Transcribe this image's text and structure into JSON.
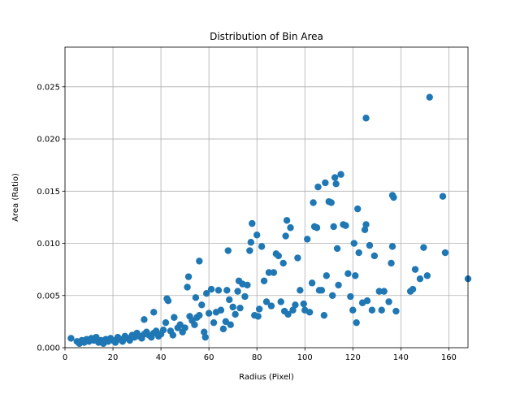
{
  "chart_data": {
    "type": "scatter",
    "title": "Distribution of Bin Area",
    "xlabel": "Radius (Pixel)",
    "ylabel": "Area (Ratio)",
    "xlim": [
      0,
      168
    ],
    "ylim": [
      0,
      0.0288
    ],
    "grid": true,
    "color": "#1f77b4",
    "x_ticks": [
      0,
      20,
      40,
      60,
      80,
      100,
      120,
      140,
      160
    ],
    "x_tick_labels": [
      "0",
      "20",
      "40",
      "60",
      "80",
      "100",
      "120",
      "140",
      "160"
    ],
    "y_ticks": [
      0,
      0.005,
      0.01,
      0.015,
      0.02,
      0.025
    ],
    "y_tick_labels": [
      "0.000",
      "0.005",
      "0.010",
      "0.015",
      "0.020",
      "0.025"
    ],
    "points": [
      [
        2.5,
        0.0009
      ],
      [
        5,
        0.0006
      ],
      [
        6,
        0.0004
      ],
      [
        7,
        0.0007
      ],
      [
        8,
        0.0005
      ],
      [
        9,
        0.0008
      ],
      [
        10,
        0.0006
      ],
      [
        11,
        0.0009
      ],
      [
        12,
        0.0007
      ],
      [
        13,
        0.001
      ],
      [
        14,
        0.0005
      ],
      [
        15,
        0.0007
      ],
      [
        16,
        0.0004
      ],
      [
        17,
        0.0008
      ],
      [
        18,
        0.0006
      ],
      [
        19,
        0.0009
      ],
      [
        20,
        0.0007
      ],
      [
        21,
        0.0005
      ],
      [
        22,
        0.001
      ],
      [
        23,
        0.0008
      ],
      [
        24,
        0.0006
      ],
      [
        25,
        0.0011
      ],
      [
        26,
        0.0009
      ],
      [
        27,
        0.0007
      ],
      [
        28,
        0.0012
      ],
      [
        29,
        0.001
      ],
      [
        30,
        0.0014
      ],
      [
        31,
        0.0011
      ],
      [
        32,
        0.0009
      ],
      [
        33,
        0.0013
      ],
      [
        34,
        0.0015
      ],
      [
        35,
        0.0012
      ],
      [
        36,
        0.001
      ],
      [
        37,
        0.0014
      ],
      [
        38,
        0.0016
      ],
      [
        39,
        0.0011
      ],
      [
        33,
        0.0027
      ],
      [
        37,
        0.0034
      ],
      [
        40,
        0.0013
      ],
      [
        41,
        0.0017
      ],
      [
        42,
        0.0024
      ],
      [
        43,
        0.0045
      ],
      [
        42.5,
        0.0047
      ],
      [
        44,
        0.0016
      ],
      [
        45,
        0.0012
      ],
      [
        45.5,
        0.0029
      ],
      [
        47,
        0.0019
      ],
      [
        48,
        0.0022
      ],
      [
        49,
        0.0015
      ],
      [
        50,
        0.0019
      ],
      [
        51,
        0.0058
      ],
      [
        51.5,
        0.0068
      ],
      [
        52,
        0.003
      ],
      [
        53,
        0.0026
      ],
      [
        54,
        0.0022
      ],
      [
        54.5,
        0.0048
      ],
      [
        55,
        0.0029
      ],
      [
        56,
        0.0031
      ],
      [
        56,
        0.0083
      ],
      [
        57,
        0.0041
      ],
      [
        58,
        0.0015
      ],
      [
        58.5,
        0.001
      ],
      [
        59,
        0.0052
      ],
      [
        60,
        0.0033
      ],
      [
        61,
        0.0056
      ],
      [
        62,
        0.0024
      ],
      [
        63,
        0.0034
      ],
      [
        64,
        0.0055
      ],
      [
        65,
        0.0036
      ],
      [
        66,
        0.0018
      ],
      [
        67,
        0.0025
      ],
      [
        67.5,
        0.0055
      ],
      [
        68,
        0.0093
      ],
      [
        68.5,
        0.0046
      ],
      [
        69,
        0.0022
      ],
      [
        70,
        0.0039
      ],
      [
        71,
        0.0032
      ],
      [
        72,
        0.0054
      ],
      [
        72.5,
        0.0064
      ],
      [
        73,
        0.0038
      ],
      [
        74,
        0.0061
      ],
      [
        75,
        0.0049
      ],
      [
        76,
        0.006
      ],
      [
        77,
        0.0093
      ],
      [
        77.5,
        0.0101
      ],
      [
        78,
        0.0119
      ],
      [
        79,
        0.0031
      ],
      [
        80,
        0.0108
      ],
      [
        80.5,
        0.003
      ],
      [
        81,
        0.0037
      ],
      [
        82,
        0.0097
      ],
      [
        83,
        0.0064
      ],
      [
        84,
        0.0044
      ],
      [
        85,
        0.0072
      ],
      [
        86,
        0.004
      ],
      [
        87,
        0.0072
      ],
      [
        88,
        0.009
      ],
      [
        89,
        0.0088
      ],
      [
        90,
        0.0044
      ],
      [
        91,
        0.0081
      ],
      [
        91.5,
        0.0035
      ],
      [
        92,
        0.0107
      ],
      [
        92.5,
        0.0122
      ],
      [
        93,
        0.0032
      ],
      [
        94,
        0.0115
      ],
      [
        95,
        0.0036
      ],
      [
        96,
        0.0041
      ],
      [
        97,
        0.0086
      ],
      [
        98,
        0.0055
      ],
      [
        99.5,
        0.0042
      ],
      [
        100,
        0.0036
      ],
      [
        101,
        0.0104
      ],
      [
        102,
        0.0034
      ],
      [
        103,
        0.0062
      ],
      [
        103.5,
        0.0139
      ],
      [
        104,
        0.0116
      ],
      [
        105,
        0.0115
      ],
      [
        105.5,
        0.0154
      ],
      [
        106,
        0.0055
      ],
      [
        107,
        0.0055
      ],
      [
        108,
        0.0031
      ],
      [
        108.5,
        0.0158
      ],
      [
        109,
        0.0069
      ],
      [
        110,
        0.014
      ],
      [
        111,
        0.0139
      ],
      [
        111.5,
        0.005
      ],
      [
        112,
        0.0116
      ],
      [
        112.5,
        0.0163
      ],
      [
        113,
        0.0157
      ],
      [
        113.5,
        0.0095
      ],
      [
        114,
        0.006
      ],
      [
        115,
        0.0166
      ],
      [
        116,
        0.0118
      ],
      [
        117,
        0.0117
      ],
      [
        118,
        0.0071
      ],
      [
        119,
        0.0049
      ],
      [
        120,
        0.0036
      ],
      [
        120.5,
        0.01
      ],
      [
        121,
        0.0069
      ],
      [
        121.5,
        0.0024
      ],
      [
        122,
        0.0133
      ],
      [
        122.5,
        0.0091
      ],
      [
        124,
        0.0043
      ],
      [
        125,
        0.0113
      ],
      [
        125.5,
        0.0118
      ],
      [
        125.5,
        0.022
      ],
      [
        126,
        0.0045
      ],
      [
        127,
        0.0098
      ],
      [
        128,
        0.0036
      ],
      [
        129,
        0.0088
      ],
      [
        131,
        0.0054
      ],
      [
        132,
        0.0036
      ],
      [
        133,
        0.0054
      ],
      [
        135,
        0.0044
      ],
      [
        136,
        0.0081
      ],
      [
        136.5,
        0.0097
      ],
      [
        136.5,
        0.0146
      ],
      [
        137,
        0.0144
      ],
      [
        138,
        0.0035
      ],
      [
        144,
        0.0054
      ],
      [
        145,
        0.0056
      ],
      [
        146,
        0.0075
      ],
      [
        148,
        0.0066
      ],
      [
        149.5,
        0.0096
      ],
      [
        151,
        0.0069
      ],
      [
        152,
        0.024
      ],
      [
        157.5,
        0.0145
      ],
      [
        158.5,
        0.0091
      ],
      [
        168,
        0.0066
      ]
    ]
  }
}
